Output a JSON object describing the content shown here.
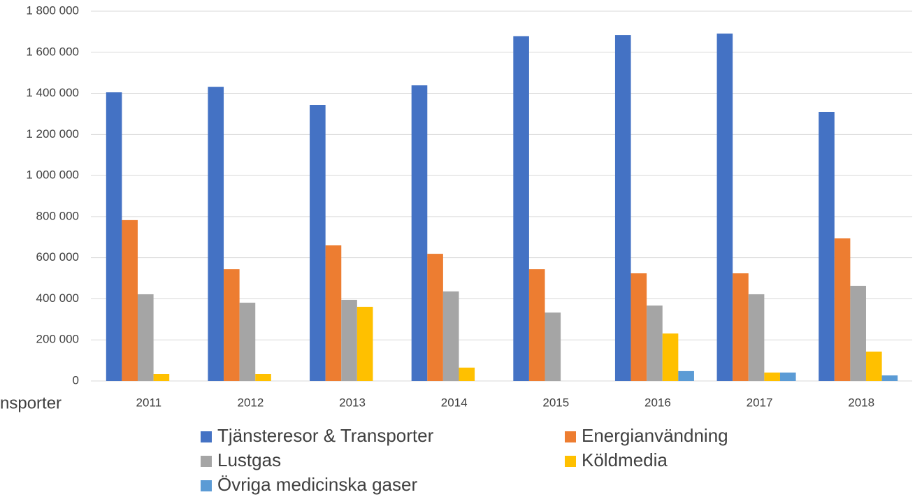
{
  "chart_data": {
    "type": "bar",
    "annotation": "nsporter",
    "categories": [
      "2011",
      "2012",
      "2013",
      "2014",
      "2015",
      "2016",
      "2017",
      "2018"
    ],
    "series": [
      {
        "name": "Tjänsteresor & Transporter",
        "color": "#4472c4",
        "values": [
          1405000,
          1432000,
          1344000,
          1439000,
          1678000,
          1684000,
          1691000,
          1310000
        ]
      },
      {
        "name": "Energianvändning",
        "color": "#ed7d31",
        "values": [
          783000,
          544000,
          660000,
          619000,
          544000,
          524000,
          524000,
          694000
        ]
      },
      {
        "name": "Lustgas",
        "color": "#a5a5a5",
        "values": [
          422000,
          381000,
          395000,
          436000,
          333000,
          367000,
          422000,
          463000
        ]
      },
      {
        "name": "Köldmedia",
        "color": "#ffc000",
        "values": [
          34000,
          34000,
          361000,
          65000,
          0,
          231000,
          41000,
          143000
        ]
      },
      {
        "name": "Övriga medicinska gaser",
        "color": "#5b9bd5",
        "values": [
          0,
          0,
          0,
          0,
          0,
          48000,
          41000,
          27000
        ]
      }
    ],
    "ylim": [
      0,
      1800000
    ],
    "yticks": [
      0,
      {
        "value": 200000,
        "label": "200 000"
      },
      {
        "value": 400000,
        "label": "400 000"
      },
      {
        "value": 600000,
        "label": "600 000"
      },
      {
        "value": 800000,
        "label": "800 000"
      },
      {
        "value": 1000000,
        "label": "1 000 000"
      },
      {
        "value": 1200000,
        "label": "1 200 000"
      },
      {
        "value": 1400000,
        "label": "1 400 000"
      },
      {
        "value": 1600000,
        "label": "1 600 000"
      },
      {
        "value": 1800000,
        "label": "1 800 000"
      }
    ],
    "grid": true
  }
}
